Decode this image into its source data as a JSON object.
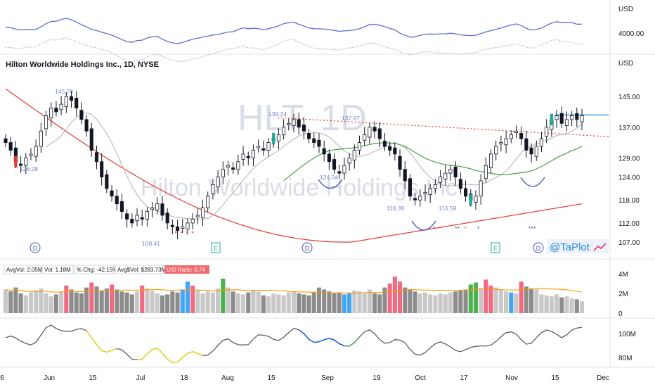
{
  "symbol_title": "Hilton Worldwide Holdings Inc., 1D, NYSE",
  "watermark_ticker": "HLT, 1D",
  "watermark_name": "Hilton Worldwide Holdings Inc.",
  "brand": "@TaPlot",
  "currency_top": "USD",
  "currency_main": "USD",
  "top_tick": "4000.00",
  "volume_stats": {
    "avg_vol": "AvgVol: 2.05M",
    "vol": "Vol: 1.18M",
    "pct_chg": "% Chg: -42.15%",
    "avg_dollar": "Avg$Vol: $283.73M",
    "ud_ratio": "U/D Ratio: 0.74"
  },
  "price_ticks": [
    "145.00",
    "137.00",
    "129.00",
    "124.00",
    "118.00",
    "112.00",
    "107.00"
  ],
  "volume_ticks": [
    "4M",
    "2M",
    "0"
  ],
  "lower_ticks": [
    "100M",
    "80M"
  ],
  "x_labels": [
    "6",
    "Jun",
    "15",
    "Jul",
    "18",
    "Aug",
    "15",
    "Sep",
    "19",
    "Oct",
    "17",
    "Nov",
    "15",
    "Dec"
  ],
  "annotations": {
    "high_1": "145.70",
    "high_2": "139.24",
    "high_3": "137.97",
    "low_1": "126.28",
    "low_2": "108.41",
    "low_3": "124.04",
    "low_4": "116.39",
    "low_5": "116.59"
  },
  "event_badges": [
    "D",
    "E",
    "D",
    "E",
    "D"
  ],
  "colors": {
    "up": "#26a69a",
    "down": "#131722",
    "vol_gray": "#8c8c8c",
    "vol_light": "#c8c8c8",
    "vol_red": "#f06b82",
    "vol_blue": "#42a5f5",
    "vol_green": "#4caf50",
    "ma_red": "#e53935",
    "ma_green": "#43a047",
    "ma_gray": "#b0b0b0",
    "resistance": "#e53935",
    "breakout": "#1e88e5",
    "rs_line": "#5b6fd6",
    "ud_badge": "#f06b70"
  },
  "chart_data": {
    "type": "candlestick",
    "title": "Hilton Worldwide Holdings Inc., 1D, NYSE",
    "x_range": [
      "May 2022",
      "Nov 2022"
    ],
    "ylim": [
      105,
      150
    ],
    "close_series": [
      133,
      131,
      128,
      127,
      129,
      130,
      132,
      136,
      140,
      142,
      141,
      143,
      145,
      144,
      142,
      139,
      136,
      131,
      128,
      124,
      121,
      119,
      117,
      115,
      113,
      112,
      114,
      113,
      115,
      116,
      117,
      114,
      112,
      111,
      110,
      111,
      112,
      113,
      114,
      116,
      119,
      122,
      124,
      126,
      127,
      126,
      128,
      130,
      129,
      131,
      132,
      131,
      133,
      134,
      135,
      137,
      138,
      139,
      137,
      136,
      134,
      133,
      132,
      130,
      128,
      126,
      125,
      127,
      129,
      131,
      133,
      135,
      137,
      136,
      134,
      132,
      131,
      130,
      126,
      123,
      119,
      118,
      119,
      120,
      121,
      122,
      124,
      125,
      126,
      124,
      121,
      119,
      118,
      119,
      123,
      127,
      130,
      132,
      133,
      134,
      135,
      136,
      134,
      131,
      130,
      132,
      134,
      137,
      139,
      140,
      138,
      139,
      140,
      139,
      140
    ],
    "volume_millions_approx": [
      2.4,
      2.2,
      2.6,
      2.0,
      1.8,
      2.1,
      2.3,
      2.5,
      2.0,
      1.7,
      1.9,
      2.2,
      2.8,
      2.4,
      2.1,
      2.0,
      2.6,
      3.1,
      2.7,
      2.3,
      2.5,
      2.9,
      2.4,
      2.2,
      2.1,
      1.9,
      2.2,
      2.8,
      2.5,
      2.3,
      2.0,
      1.8,
      1.9,
      2.2,
      2.1,
      2.4,
      3.2,
      2.8,
      2.3,
      2.0,
      2.2,
      2.1,
      2.5,
      3.5,
      2.6,
      2.2,
      2.0,
      1.9,
      2.1,
      2.3,
      2.2,
      1.8,
      1.7,
      2.0,
      1.9,
      1.8,
      2.1,
      2.2,
      2.0,
      1.9,
      1.8,
      2.1,
      2.6,
      2.4,
      2.2,
      2.0,
      2.1,
      1.9,
      2.0,
      2.3,
      2.2,
      2.1,
      2.4,
      2.0,
      1.9,
      2.6,
      3.0,
      3.7,
      3.2,
      2.6,
      2.4,
      2.2,
      2.0,
      2.1,
      1.9,
      1.8,
      2.0,
      1.9,
      2.1,
      2.2,
      2.3,
      2.4,
      2.9,
      3.1,
      2.5,
      3.4,
      2.8,
      2.6,
      2.4,
      2.2,
      2.1,
      2.0,
      3.2,
      2.7,
      2.5,
      2.4,
      1.9,
      1.8,
      1.7,
      1.9,
      1.6,
      1.7,
      1.5,
      1.4,
      1.2
    ],
    "volume_ylim": [
      0,
      4.5
    ],
    "resistance_line": {
      "from": 139.5,
      "to": 134.5
    },
    "breakout_level": 140.2,
    "moving_averages": [
      "50-day (green)",
      "200-day (red)",
      "21-day (gray)"
    ]
  }
}
